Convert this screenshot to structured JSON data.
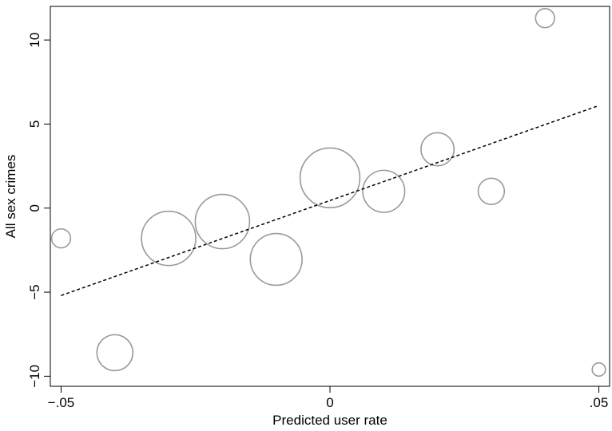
{
  "chart_data": {
    "type": "scatter",
    "title": "",
    "xlabel": "Predicted user rate",
    "ylabel": "All sex crimes",
    "xlim": [
      -0.052,
      0.052
    ],
    "ylim": [
      -10.6,
      12.0
    ],
    "x_ticks": [
      {
        "value": -0.05,
        "label": "-.05"
      },
      {
        "value": 0,
        "label": "0"
      },
      {
        "value": 0.05,
        "label": ".05"
      }
    ],
    "y_ticks": [
      {
        "value": -10,
        "label": "-10"
      },
      {
        "value": -5,
        "label": "-5"
      },
      {
        "value": 0,
        "label": "0"
      },
      {
        "value": 5,
        "label": "5"
      },
      {
        "value": 10,
        "label": "10"
      }
    ],
    "grid": false,
    "points": [
      {
        "x": -0.05,
        "y": -1.8,
        "weight": 0.2
      },
      {
        "x": -0.04,
        "y": -8.6,
        "weight": 1.1
      },
      {
        "x": -0.03,
        "y": -1.8,
        "weight": 2.9
      },
      {
        "x": -0.02,
        "y": -0.8,
        "weight": 2.9
      },
      {
        "x": -0.01,
        "y": -3.05,
        "weight": 2.6
      },
      {
        "x": 0.0,
        "y": 1.8,
        "weight": 3.6
      },
      {
        "x": 0.01,
        "y": 1.0,
        "weight": 1.6
      },
      {
        "x": 0.02,
        "y": 3.5,
        "weight": 0.9
      },
      {
        "x": 0.03,
        "y": 1.0,
        "weight": 0.5
      },
      {
        "x": 0.04,
        "y": 11.3,
        "weight": 0.2
      },
      {
        "x": 0.05,
        "y": -9.6,
        "weight": 0.06
      }
    ],
    "fit_line": {
      "x": [
        -0.05,
        0.05
      ],
      "y": [
        -5.2,
        6.1
      ],
      "style": "dashed"
    },
    "colors": {
      "markers": "#9a9a9a",
      "fit_line": "#000000",
      "axes": "#000000"
    }
  }
}
